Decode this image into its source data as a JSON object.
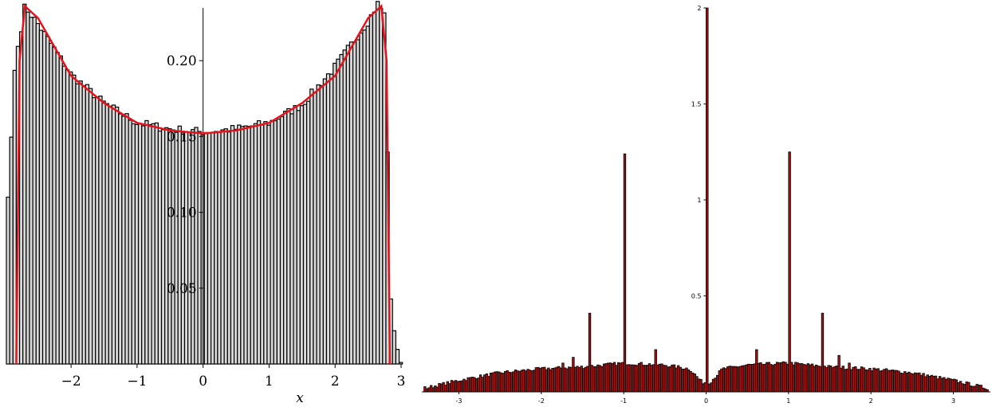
{
  "chart_data": [
    {
      "type": "bar",
      "subtype": "histogram with fitted density curve",
      "xlabel": "x",
      "ylabel": "",
      "title": "",
      "xlim": [
        -2.98,
        3.0
      ],
      "ylim": [
        0.0,
        0.24
      ],
      "x_tick_labels": [
        "−2",
        "−1",
        "0",
        "1",
        "2",
        "3"
      ],
      "x_ticks": [
        -2,
        -1,
        0,
        1,
        2,
        3
      ],
      "y_tick_labels": [
        "0.05",
        "0.10",
        "0.15",
        "0.20"
      ],
      "y_ticks": [
        0.05,
        0.1,
        0.15,
        0.2
      ],
      "bin_width": 0.05,
      "bar_fill": "#d9d9d9",
      "bar_stroke": "#000000",
      "curve_color": "#e8121b",
      "support": [
        -2.83,
        2.83
      ],
      "histogram_samples": [
        {
          "x": -2.95,
          "y": 0.11
        },
        {
          "x": -2.85,
          "y": 0.198
        },
        {
          "x": -2.7,
          "y": 0.236
        },
        {
          "x": -2.5,
          "y": 0.224
        },
        {
          "x": -2.0,
          "y": 0.191
        },
        {
          "x": -1.5,
          "y": 0.172
        },
        {
          "x": -1.0,
          "y": 0.159
        },
        {
          "x": -0.5,
          "y": 0.155
        },
        {
          "x": 0.0,
          "y": 0.153
        },
        {
          "x": 0.5,
          "y": 0.155
        },
        {
          "x": 1.0,
          "y": 0.159
        },
        {
          "x": 1.5,
          "y": 0.171
        },
        {
          "x": 2.0,
          "y": 0.196
        },
        {
          "x": 2.5,
          "y": 0.226
        },
        {
          "x": 2.65,
          "y": 0.238
        },
        {
          "x": 2.75,
          "y": 0.23
        },
        {
          "x": 2.85,
          "y": 0.033
        },
        {
          "x": 2.98,
          "y": 0.001
        }
      ],
      "curve_samples": [
        {
          "x": -2.83,
          "y": 0.0
        },
        {
          "x": -2.78,
          "y": 0.2
        },
        {
          "x": -2.7,
          "y": 0.236
        },
        {
          "x": -2.5,
          "y": 0.228
        },
        {
          "x": -2.0,
          "y": 0.19
        },
        {
          "x": -1.5,
          "y": 0.172
        },
        {
          "x": -1.0,
          "y": 0.159
        },
        {
          "x": -0.5,
          "y": 0.154
        },
        {
          "x": 0.0,
          "y": 0.152
        },
        {
          "x": 0.5,
          "y": 0.154
        },
        {
          "x": 1.0,
          "y": 0.159
        },
        {
          "x": 1.5,
          "y": 0.172
        },
        {
          "x": 2.0,
          "y": 0.19
        },
        {
          "x": 2.5,
          "y": 0.228
        },
        {
          "x": 2.7,
          "y": 0.236
        },
        {
          "x": 2.78,
          "y": 0.2
        },
        {
          "x": 2.83,
          "y": 0.0
        }
      ]
    },
    {
      "type": "bar",
      "subtype": "histogram",
      "xlabel": "",
      "ylabel": "",
      "title": "",
      "xlim": [
        -3.45,
        3.45
      ],
      "ylim": [
        0.0,
        2.0
      ],
      "x_tick_labels": [
        "-3",
        "-2",
        "-1",
        "0",
        "1",
        "2",
        "3"
      ],
      "x_ticks": [
        -3,
        -2,
        -1,
        0,
        1,
        2,
        3
      ],
      "y_tick_labels": [
        "0.5",
        "1",
        "1.5",
        "2"
      ],
      "y_ticks": [
        0.5,
        1.0,
        1.5,
        2.0
      ],
      "bin_width": 0.025,
      "bar_fill": "#a01414",
      "bar_stroke": "#000000",
      "baseline_samples": [
        {
          "x": -3.4,
          "y": 0.02
        },
        {
          "x": -3.0,
          "y": 0.06
        },
        {
          "x": -2.5,
          "y": 0.1
        },
        {
          "x": -2.0,
          "y": 0.12
        },
        {
          "x": -1.5,
          "y": 0.13
        },
        {
          "x": -1.0,
          "y": 0.15
        },
        {
          "x": -0.5,
          "y": 0.14
        },
        {
          "x": -0.2,
          "y": 0.12
        },
        {
          "x": -0.05,
          "y": 0.05
        },
        {
          "x": 0.05,
          "y": 0.05
        },
        {
          "x": 0.2,
          "y": 0.12
        },
        {
          "x": 0.5,
          "y": 0.14
        },
        {
          "x": 1.0,
          "y": 0.15
        },
        {
          "x": 1.5,
          "y": 0.13
        },
        {
          "x": 2.0,
          "y": 0.12
        },
        {
          "x": 2.5,
          "y": 0.1
        },
        {
          "x": 3.0,
          "y": 0.06
        },
        {
          "x": 3.4,
          "y": 0.02
        }
      ],
      "spikes": [
        {
          "x": -1.732,
          "y": 0.15
        },
        {
          "x": -1.618,
          "y": 0.18
        },
        {
          "x": -1.414,
          "y": 0.41
        },
        {
          "x": -1.0,
          "y": 1.24
        },
        {
          "x": -0.618,
          "y": 0.22
        },
        {
          "x": 0.0,
          "y": 2.0
        },
        {
          "x": 0.618,
          "y": 0.22
        },
        {
          "x": 1.0,
          "y": 1.25
        },
        {
          "x": 1.414,
          "y": 0.41
        },
        {
          "x": 1.618,
          "y": 0.19
        },
        {
          "x": 1.732,
          "y": 0.15
        }
      ]
    }
  ]
}
